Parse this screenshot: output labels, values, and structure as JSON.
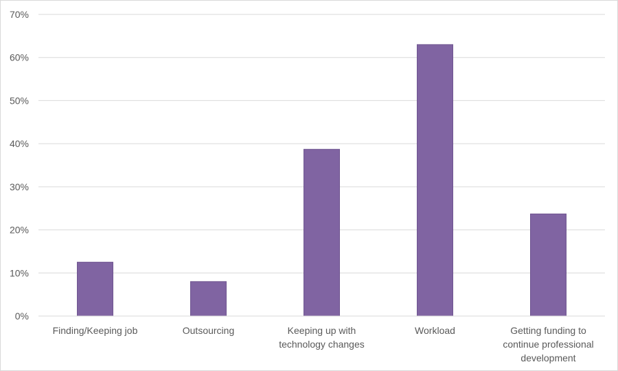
{
  "chart_data": {
    "type": "bar",
    "categories": [
      [
        "Finding/Keeping job"
      ],
      [
        "Outsourcing"
      ],
      [
        "Keeping up with",
        "technology changes"
      ],
      [
        "Workload"
      ],
      [
        "Getting funding to",
        "continue professional",
        "development"
      ]
    ],
    "values": [
      12.5,
      8.0,
      38.7,
      63.0,
      23.7
    ],
    "unit": "%",
    "ylim": [
      0,
      70
    ],
    "yticks": [
      "0%",
      "10%",
      "20%",
      "30%",
      "40%",
      "50%",
      "60%",
      "70%"
    ],
    "grid": true,
    "legend": "none",
    "title": "",
    "xlabel": "",
    "ylabel": ""
  },
  "colors": {
    "bar_fill": "#8064a2",
    "bar_stroke": "#6f5590",
    "gridline": "#d9d9d9",
    "axis_line": "#d9d9d9",
    "text": "#595959"
  }
}
